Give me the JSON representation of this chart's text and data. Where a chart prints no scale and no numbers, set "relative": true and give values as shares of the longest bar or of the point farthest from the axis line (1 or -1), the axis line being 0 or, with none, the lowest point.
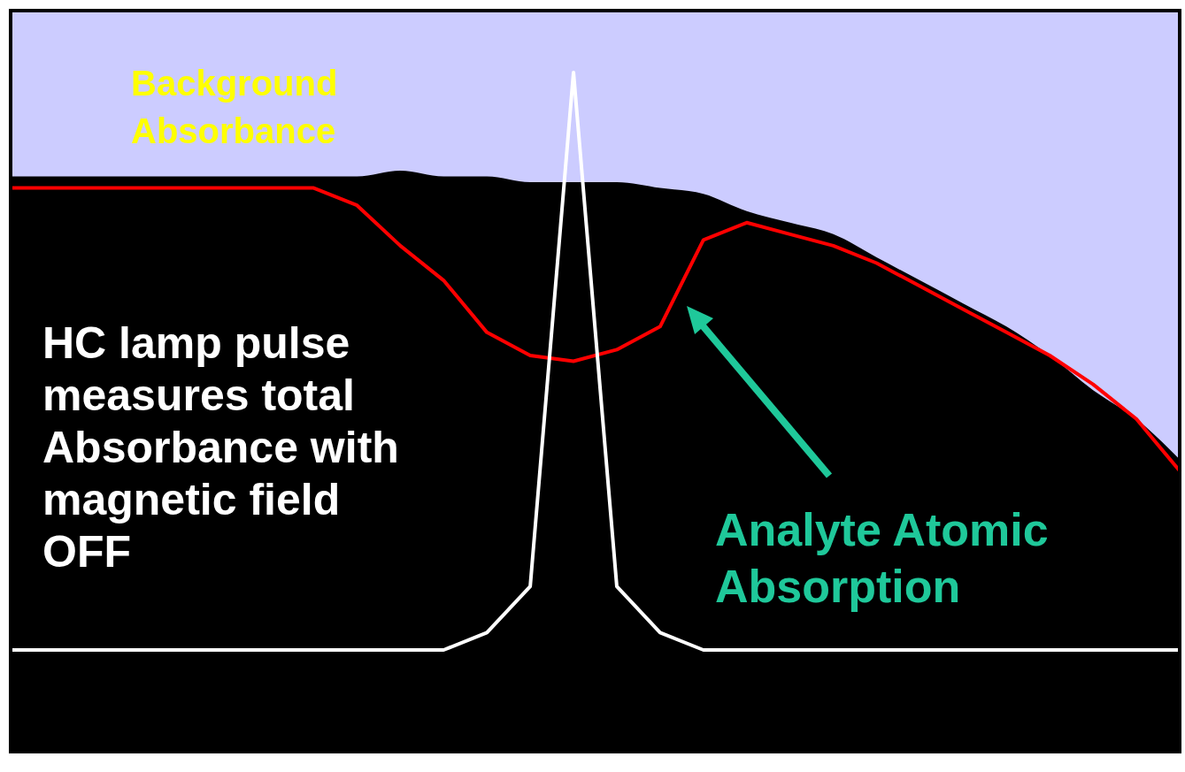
{
  "chart_data": {
    "type": "line",
    "relative": true,
    "categories": [
      null,
      null,
      null,
      null,
      null,
      null,
      null,
      null,
      null,
      null,
      null,
      null,
      null,
      null,
      null,
      null,
      null,
      null,
      null,
      null,
      null,
      null,
      null,
      null,
      null,
      null,
      null,
      null
    ],
    "series": [
      {
        "type": "area",
        "color": "#000000",
        "values": [
          0.82,
          0.82,
          0.82,
          0.82,
          0.82,
          0.82,
          0.82,
          0.82,
          0.82,
          0.83,
          0.82,
          0.82,
          0.81,
          0.81,
          0.81,
          0.8,
          0.79,
          0.76,
          0.74,
          0.72,
          0.68,
          0.64,
          0.6,
          0.56,
          0.51,
          0.45,
          0.4,
          0.33
        ]
      },
      {
        "type": "line",
        "color": "#ff0000",
        "values": [
          0.8,
          0.8,
          0.8,
          0.8,
          0.8,
          0.8,
          0.8,
          0.8,
          0.77,
          0.7,
          0.64,
          0.55,
          0.51,
          0.5,
          0.52,
          0.56,
          0.71,
          0.74,
          0.72,
          0.7,
          0.67,
          0.63,
          0.59,
          0.55,
          0.51,
          0.46,
          0.4,
          0.31
        ]
      },
      {
        "color": "#ffffff",
        "values": [
          0,
          0,
          0,
          0,
          0,
          0,
          0,
          0,
          0,
          0,
          0,
          0.03,
          0.11,
          1,
          0.11,
          0.03,
          0,
          0,
          0,
          0,
          0,
          0,
          0,
          0,
          0,
          0,
          0,
          0
        ]
      }
    ],
    "annotations": [
      "Background Absorbance",
      "HC lamp pulse measures total Absorbance with magnetic field OFF",
      "Analyte Atomic Absorption"
    ],
    "grid": false,
    "marker": "none",
    "line_style": "solid"
  }
}
